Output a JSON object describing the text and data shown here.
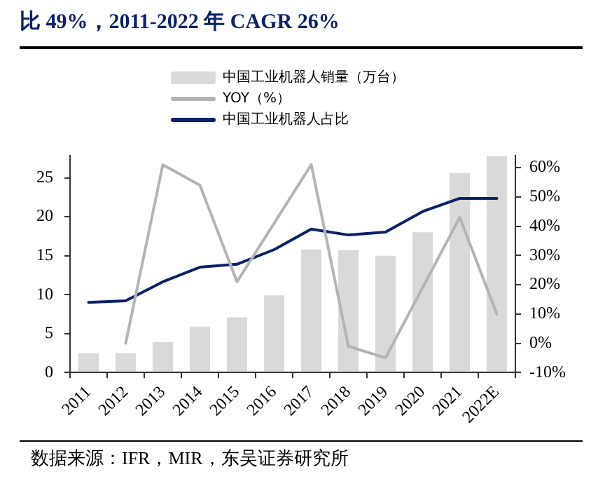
{
  "chart_data": {
    "type": "bar",
    "title": "比 49%，2011-2022 年 CAGR 26%",
    "categories": [
      "2011",
      "2012",
      "2013",
      "2014",
      "2015",
      "2016",
      "2017",
      "2018",
      "2019",
      "2020",
      "2021",
      "2022E"
    ],
    "series": [
      {
        "name": "中国工业机器人销量（万台）",
        "color": "#d9d9d9",
        "values": [
          2.5,
          2.5,
          3.9,
          5.9,
          7.1,
          9.9,
          15.8,
          15.7,
          15.0,
          18.0,
          25.6,
          27.8
        ]
      },
      {
        "name": "YOY（%）",
        "type": "line",
        "axis": "y2",
        "color": "#b4b4b4",
        "values": [
          null,
          0,
          61,
          54,
          21,
          41,
          61,
          -1,
          -5,
          19,
          43,
          10
        ]
      },
      {
        "name": "中国工业机器人占比",
        "type": "line",
        "axis": "y2",
        "color": "#0d2167",
        "values": [
          14,
          14.5,
          21,
          26,
          27,
          32,
          39,
          37,
          38,
          45,
          49.5,
          49.5
        ]
      }
    ],
    "ylim": [
      0,
      27.8
    ],
    "yticks": [
      0,
      5,
      10,
      15,
      20,
      25
    ],
    "y2lim": [
      -10,
      64
    ],
    "y2ticks": [
      {
        "value": -10,
        "label": "-10%"
      },
      {
        "value": 0,
        "label": "0%"
      },
      {
        "value": 10,
        "label": "10%"
      },
      {
        "value": 20,
        "label": "20%"
      },
      {
        "value": 30,
        "label": "30%"
      },
      {
        "value": 40,
        "label": "40%"
      },
      {
        "value": 50,
        "label": "50%"
      },
      {
        "value": 60,
        "label": "60%"
      }
    ],
    "grid": false,
    "legend": "top",
    "marker": "none",
    "annotations": [
      "数据来源：IFR，MIR，东吴证券研究所"
    ]
  }
}
